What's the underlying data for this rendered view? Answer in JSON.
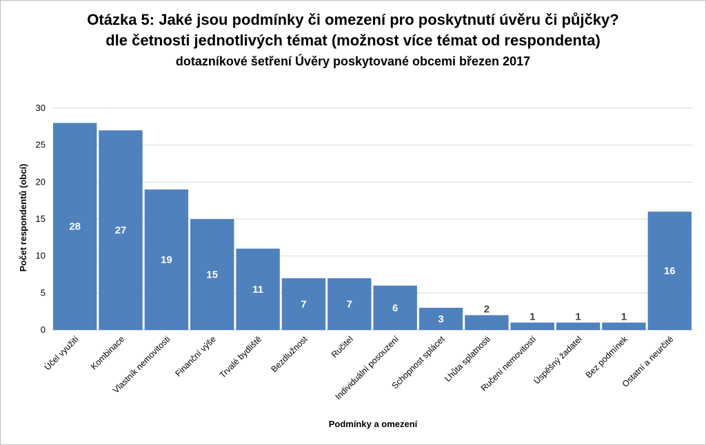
{
  "chart_data": {
    "type": "bar",
    "title": "Otázka 5: Jaké jsou podmínky či omezení pro poskytnutí úvěru či půjčky?",
    "subtitle": "dle četnosti jednotlivých témat (možnost více témat od respondenta)",
    "subtitle2": "dotazníkové šetření Úvěry poskytované obcemi březen 2017",
    "xlabel": "Podmínky a omezení",
    "ylabel": "Počet respondentů (obcí)",
    "ylim": [
      0,
      30
    ],
    "yticks": [
      "0",
      "5",
      "10",
      "15",
      "20",
      "25",
      "30"
    ],
    "grid": true,
    "bar_color": "#4f81bd",
    "categories": [
      "Účel využití",
      "Kombinace",
      "Vlastník nemovitosti",
      "Finanční výše",
      "Trvalé bydliště",
      "Bezdlužnost",
      "Ručitel",
      "Individuální posouzení",
      "Schopnost splácet",
      "Lhůta splatnosti",
      "Ručení nemovitostí",
      "Úspěšný žadatel",
      "Bez podmínek",
      "Ostatní a neurčité"
    ],
    "values": [
      28,
      27,
      19,
      15,
      11,
      7,
      7,
      6,
      3,
      2,
      1,
      1,
      1,
      16
    ]
  }
}
